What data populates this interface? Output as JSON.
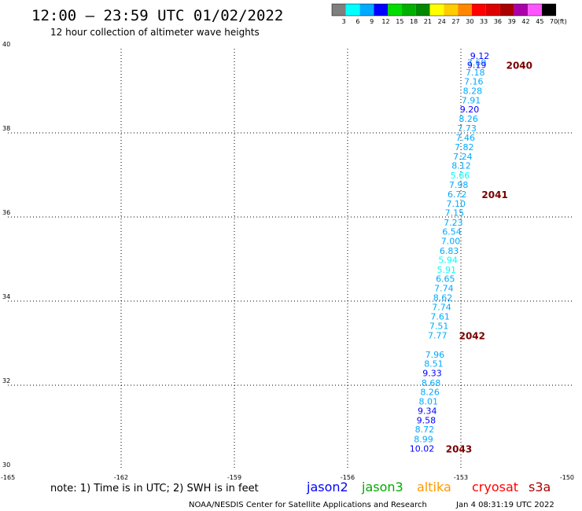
{
  "header": {
    "title": "12:00 – 23:59 UTC 01/02/2022",
    "subtitle": "12 hour collection of altimeter wave heights"
  },
  "colorbar": {
    "unit": "(ft)",
    "bins": [
      {
        "label": "3",
        "color": "#7f7f7f"
      },
      {
        "label": "6",
        "color": "#00ffff"
      },
      {
        "label": "9",
        "color": "#00aaff"
      },
      {
        "label": "12",
        "color": "#0000ff"
      },
      {
        "label": "15",
        "color": "#00dd00"
      },
      {
        "label": "18",
        "color": "#00b000"
      },
      {
        "label": "21",
        "color": "#008800"
      },
      {
        "label": "24",
        "color": "#ffff00"
      },
      {
        "label": "27",
        "color": "#ffcc00"
      },
      {
        "label": "30",
        "color": "#ff8800"
      },
      {
        "label": "33",
        "color": "#ff0000"
      },
      {
        "label": "36",
        "color": "#dd0000"
      },
      {
        "label": "39",
        "color": "#aa0000"
      },
      {
        "label": "42",
        "color": "#aa00aa"
      },
      {
        "label": "45",
        "color": "#ff55ff"
      },
      {
        "label": "70",
        "color": "#000000"
      }
    ]
  },
  "chart_data": {
    "type": "scatter",
    "xlim": [
      -165,
      -150
    ],
    "ylim": [
      30,
      40
    ],
    "x_ticks": [
      {
        "value": -165,
        "label": "-165"
      },
      {
        "value": -162,
        "label": "-162"
      },
      {
        "value": -159,
        "label": "-159"
      },
      {
        "value": -156,
        "label": "-156"
      },
      {
        "value": -153,
        "label": "-153"
      },
      {
        "value": -150,
        "label": "-150"
      }
    ],
    "y_ticks": [
      {
        "value": 30,
        "label": "30"
      },
      {
        "value": 32,
        "label": "32"
      },
      {
        "value": 34,
        "label": "34"
      },
      {
        "value": 36,
        "label": "36"
      },
      {
        "value": 38,
        "label": "38"
      },
      {
        "value": 40,
        "label": "40"
      }
    ],
    "grid": true,
    "points": [
      {
        "lon": -152.5,
        "lat": 39.83,
        "label": "9.12",
        "color": "#0000ff"
      },
      {
        "lon": -152.58,
        "lat": 39.67,
        "label": "7.69",
        "color": "#00aaff"
      },
      {
        "lon": -152.58,
        "lat": 39.62,
        "label": "9.19",
        "color": "#0000ff"
      },
      {
        "lon": -152.62,
        "lat": 39.44,
        "label": "7.18",
        "color": "#00aaff"
      },
      {
        "lon": -152.66,
        "lat": 39.22,
        "label": "7.16",
        "color": "#00aaff"
      },
      {
        "lon": -152.69,
        "lat": 39.0,
        "label": "8.28",
        "color": "#00aaff"
      },
      {
        "lon": -152.73,
        "lat": 38.78,
        "label": "7.91",
        "color": "#00aaff"
      },
      {
        "lon": -152.77,
        "lat": 38.56,
        "label": "9.20",
        "color": "#0000ff"
      },
      {
        "lon": -152.8,
        "lat": 38.34,
        "label": "8.26",
        "color": "#00aaff"
      },
      {
        "lon": -152.84,
        "lat": 38.11,
        "label": "7.73",
        "color": "#00aaff"
      },
      {
        "lon": -152.88,
        "lat": 37.89,
        "label": "7.46",
        "color": "#00aaff"
      },
      {
        "lon": -152.91,
        "lat": 37.66,
        "label": "7.82",
        "color": "#00aaff"
      },
      {
        "lon": -152.95,
        "lat": 37.44,
        "label": "7.24",
        "color": "#00aaff"
      },
      {
        "lon": -152.99,
        "lat": 37.22,
        "label": "8.12",
        "color": "#00aaff"
      },
      {
        "lon": -153.02,
        "lat": 36.99,
        "label": "5.66",
        "color": "#00ffff"
      },
      {
        "lon": -153.06,
        "lat": 36.77,
        "label": "7.98",
        "color": "#00aaff"
      },
      {
        "lon": -153.1,
        "lat": 36.54,
        "label": "6.72",
        "color": "#00aaff"
      },
      {
        "lon": -153.13,
        "lat": 36.32,
        "label": "7.10",
        "color": "#00aaff"
      },
      {
        "lon": -153.17,
        "lat": 36.1,
        "label": "7.15",
        "color": "#00aaff"
      },
      {
        "lon": -153.2,
        "lat": 35.87,
        "label": "7.23",
        "color": "#00aaff"
      },
      {
        "lon": -153.24,
        "lat": 35.65,
        "label": "6.54",
        "color": "#00aaff"
      },
      {
        "lon": -153.27,
        "lat": 35.43,
        "label": "7.00",
        "color": "#00aaff"
      },
      {
        "lon": -153.31,
        "lat": 35.2,
        "label": "6.83",
        "color": "#00aaff"
      },
      {
        "lon": -153.34,
        "lat": 34.98,
        "label": "5.94",
        "color": "#00ffff"
      },
      {
        "lon": -153.38,
        "lat": 34.75,
        "label": "5.91",
        "color": "#00ffff"
      },
      {
        "lon": -153.41,
        "lat": 34.53,
        "label": "6.65",
        "color": "#00aaff"
      },
      {
        "lon": -153.45,
        "lat": 34.31,
        "label": "7.74",
        "color": "#00aaff"
      },
      {
        "lon": -153.48,
        "lat": 34.08,
        "label": "8.62",
        "color": "#00aaff"
      },
      {
        "lon": -153.51,
        "lat": 33.86,
        "label": "7.74",
        "color": "#00aaff"
      },
      {
        "lon": -153.55,
        "lat": 33.64,
        "label": "7.61",
        "color": "#00aaff"
      },
      {
        "lon": -153.58,
        "lat": 33.41,
        "label": "7.51",
        "color": "#00aaff"
      },
      {
        "lon": -153.62,
        "lat": 33.19,
        "label": "7.77",
        "color": "#00aaff"
      },
      {
        "lon": -153.69,
        "lat": 32.73,
        "label": "7.96",
        "color": "#00aaff"
      },
      {
        "lon": -153.72,
        "lat": 32.51,
        "label": "8.51",
        "color": "#00aaff"
      },
      {
        "lon": -153.76,
        "lat": 32.29,
        "label": "9.33",
        "color": "#0000ff"
      },
      {
        "lon": -153.79,
        "lat": 32.06,
        "label": "8.68",
        "color": "#00aaff"
      },
      {
        "lon": -153.82,
        "lat": 31.84,
        "label": "8.26",
        "color": "#00aaff"
      },
      {
        "lon": -153.86,
        "lat": 31.62,
        "label": "8.01",
        "color": "#00aaff"
      },
      {
        "lon": -153.89,
        "lat": 31.39,
        "label": "9.34",
        "color": "#0000ff"
      },
      {
        "lon": -153.92,
        "lat": 31.17,
        "label": "9.58",
        "color": "#0000ff"
      },
      {
        "lon": -153.96,
        "lat": 30.95,
        "label": "8.72",
        "color": "#00aaff"
      },
      {
        "lon": -153.99,
        "lat": 30.72,
        "label": "8.99",
        "color": "#00aaff"
      },
      {
        "lon": -154.03,
        "lat": 30.5,
        "label": "10.02",
        "color": "#0000ff"
      }
    ],
    "pass_labels": [
      {
        "lon": -151.8,
        "lat": 39.62,
        "label": "2040"
      },
      {
        "lon": -152.45,
        "lat": 36.54,
        "label": "2041"
      },
      {
        "lon": -153.05,
        "lat": 33.19,
        "label": "2042"
      },
      {
        "lon": -153.4,
        "lat": 30.5,
        "label": "2043"
      }
    ]
  },
  "footer": {
    "note": "note:  1) Time is in UTC;  2) SWH is in feet",
    "satellites": [
      {
        "name": "jason2",
        "color": "#0000ff"
      },
      {
        "name": "jason3",
        "color": "#00aa00"
      },
      {
        "name": "altika",
        "color": "#ff9900"
      },
      {
        "name": "cryosat",
        "color": "#ff0000"
      },
      {
        "name": "s3a",
        "color": "#aa0000"
      }
    ],
    "credit": "NOAA/NESDIS Center for Satellite Applications and Research",
    "timestamp": "Jan  4 08:31:19 UTC 2022"
  }
}
